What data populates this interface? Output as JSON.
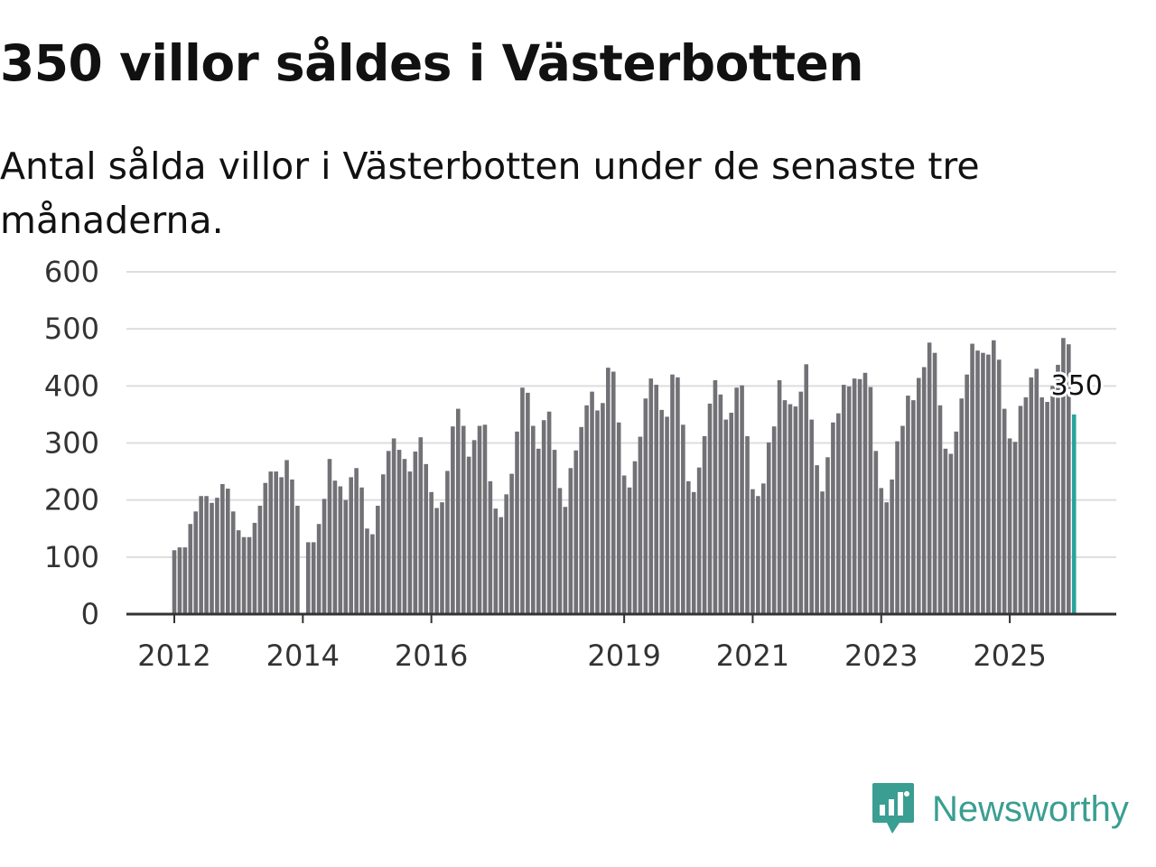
{
  "title": "350 villor såldes i Västerbotten",
  "subtitle": "Antal sålda villor i Västerbotten under de senaste tre månaderna.",
  "brand": {
    "name": "Newsworthy",
    "color": "#3a9e92",
    "icon": "chart-speech-bubble-icon"
  },
  "chart_data": {
    "type": "bar",
    "title": "",
    "xlabel": "",
    "ylabel": "",
    "ylim": [
      0,
      600
    ],
    "yticks": [
      "0",
      "100",
      "200",
      "300",
      "400",
      "500",
      "600"
    ],
    "xtick_labels": [
      {
        "label": "2012",
        "year": 2012
      },
      {
        "label": "2014",
        "year": 2014
      },
      {
        "label": "2016",
        "year": 2016
      },
      {
        "label": "2019",
        "year": 2019
      },
      {
        "label": "2021",
        "year": 2021
      },
      {
        "label": "2023",
        "year": 2023
      },
      {
        "label": "2025",
        "year": 2025
      }
    ],
    "start": "2012-01",
    "highlight_label": "350",
    "colors": {
      "bar": "#717176",
      "highlight": "#2aa39b",
      "grid": "#dddddd",
      "axis": "#333333"
    },
    "values": [
      112,
      117,
      117,
      158,
      180,
      207,
      207,
      195,
      204,
      228,
      220,
      180,
      147,
      135,
      135,
      160,
      190,
      230,
      250,
      250,
      240,
      270,
      236,
      190,
      null,
      126,
      126,
      158,
      202,
      272,
      234,
      224,
      200,
      240,
      256,
      222,
      150,
      140,
      190,
      245,
      286,
      308,
      288,
      272,
      250,
      285,
      310,
      263,
      214,
      186,
      196,
      251,
      329,
      360,
      330,
      276,
      305,
      330,
      332,
      233,
      185,
      170,
      210,
      246,
      320,
      397,
      388,
      330,
      290,
      340,
      355,
      288,
      221,
      188,
      256,
      287,
      328,
      366,
      390,
      357,
      370,
      432,
      425,
      336,
      243,
      222,
      268,
      311,
      378,
      413,
      402,
      358,
      346,
      420,
      415,
      332,
      233,
      214,
      257,
      312,
      369,
      410,
      385,
      341,
      353,
      397,
      401,
      312,
      219,
      207,
      229,
      301,
      329,
      410,
      375,
      368,
      364,
      390,
      438,
      341,
      261,
      215,
      275,
      336,
      352,
      402,
      399,
      413,
      412,
      423,
      398,
      286,
      221,
      196,
      236,
      303,
      330,
      383,
      375,
      414,
      433,
      476,
      458,
      366,
      290,
      281,
      320,
      378,
      420,
      474,
      462,
      458,
      455,
      480,
      446,
      360,
      308,
      302,
      365,
      380,
      415,
      430,
      380,
      372,
      400,
      437,
      484,
      473,
      350
    ]
  }
}
